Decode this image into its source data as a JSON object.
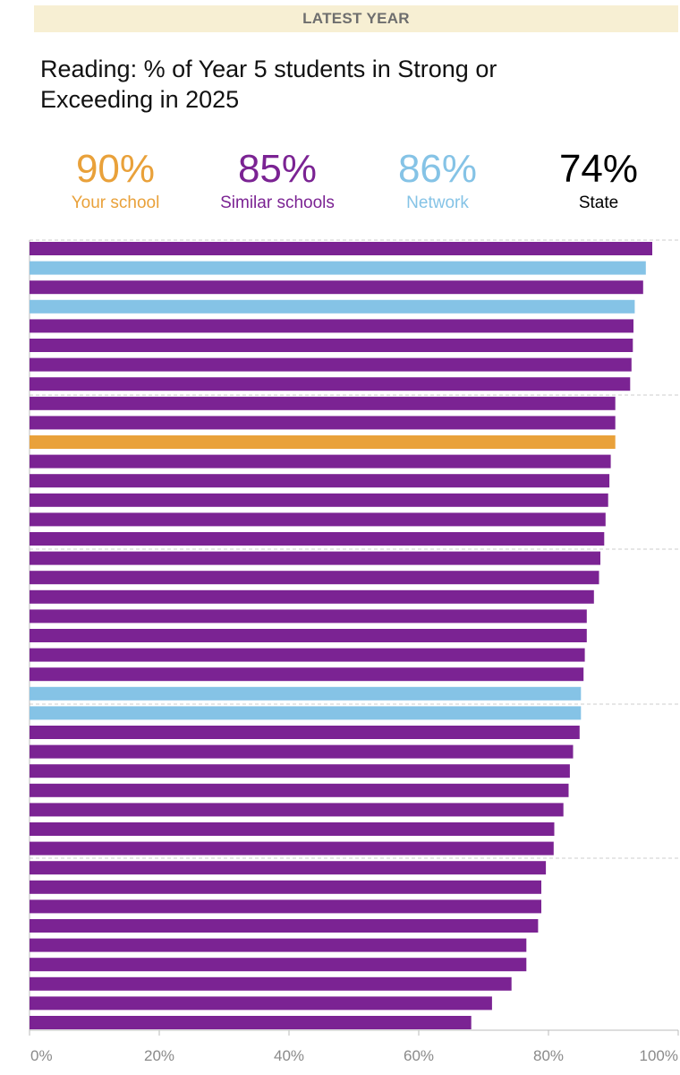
{
  "header": {
    "banner": "LATEST YEAR"
  },
  "title": "Reading: % of Year 5 students in Strong or Exceeding in 2025",
  "kpis": [
    {
      "value": "90%",
      "label": "Your school",
      "color": "#e9a13a"
    },
    {
      "value": "85%",
      "label": "Similar schools",
      "color": "#7b2393"
    },
    {
      "value": "86%",
      "label": "Network",
      "color": "#85c3e6"
    },
    {
      "value": "74%",
      "label": "State",
      "color": "#000000"
    }
  ],
  "colors": {
    "your_school": "#e9a13a",
    "similar_schools": "#7b2393",
    "network": "#85c3e6",
    "gridline": "#cccccc",
    "axis": "#bbbbbb"
  },
  "chart_data": {
    "type": "bar",
    "orientation": "horizontal",
    "title": "Reading: % of Year 5 students in Strong or Exceeding in 2025",
    "xlim": [
      0,
      100
    ],
    "xticks": [
      "0%",
      "20%",
      "40%",
      "60%",
      "80%",
      "100%"
    ],
    "xtick_values": [
      0,
      20,
      40,
      60,
      80,
      100
    ],
    "grid": "horizontal-dashed",
    "legend": "none",
    "bars": [
      {
        "value": 96,
        "group": "similar"
      },
      {
        "value": 95,
        "group": "network"
      },
      {
        "value": 94.6,
        "group": "similar"
      },
      {
        "value": 93.3,
        "group": "network"
      },
      {
        "value": 93.1,
        "group": "similar"
      },
      {
        "value": 93,
        "group": "similar"
      },
      {
        "value": 92.8,
        "group": "similar"
      },
      {
        "value": 92.6,
        "group": "similar"
      },
      {
        "value": 90.3,
        "group": "similar"
      },
      {
        "value": 90.3,
        "group": "similar"
      },
      {
        "value": 90.3,
        "group": "school"
      },
      {
        "value": 89.6,
        "group": "similar"
      },
      {
        "value": 89.4,
        "group": "similar"
      },
      {
        "value": 89.2,
        "group": "similar"
      },
      {
        "value": 88.8,
        "group": "similar"
      },
      {
        "value": 88.6,
        "group": "similar"
      },
      {
        "value": 88,
        "group": "similar"
      },
      {
        "value": 87.8,
        "group": "similar"
      },
      {
        "value": 87,
        "group": "similar"
      },
      {
        "value": 85.9,
        "group": "similar"
      },
      {
        "value": 85.9,
        "group": "similar"
      },
      {
        "value": 85.6,
        "group": "similar"
      },
      {
        "value": 85.4,
        "group": "similar"
      },
      {
        "value": 85,
        "group": "network"
      },
      {
        "value": 85,
        "group": "network"
      },
      {
        "value": 84.8,
        "group": "similar"
      },
      {
        "value": 83.8,
        "group": "similar"
      },
      {
        "value": 83.3,
        "group": "similar"
      },
      {
        "value": 83.1,
        "group": "similar"
      },
      {
        "value": 82.3,
        "group": "similar"
      },
      {
        "value": 80.9,
        "group": "similar"
      },
      {
        "value": 80.8,
        "group": "similar"
      },
      {
        "value": 79.6,
        "group": "similar"
      },
      {
        "value": 78.9,
        "group": "similar"
      },
      {
        "value": 78.9,
        "group": "similar"
      },
      {
        "value": 78.4,
        "group": "similar"
      },
      {
        "value": 76.6,
        "group": "similar"
      },
      {
        "value": 76.6,
        "group": "similar"
      },
      {
        "value": 74.3,
        "group": "similar"
      },
      {
        "value": 71.3,
        "group": "similar"
      },
      {
        "value": 68.1,
        "group": "similar"
      }
    ]
  }
}
